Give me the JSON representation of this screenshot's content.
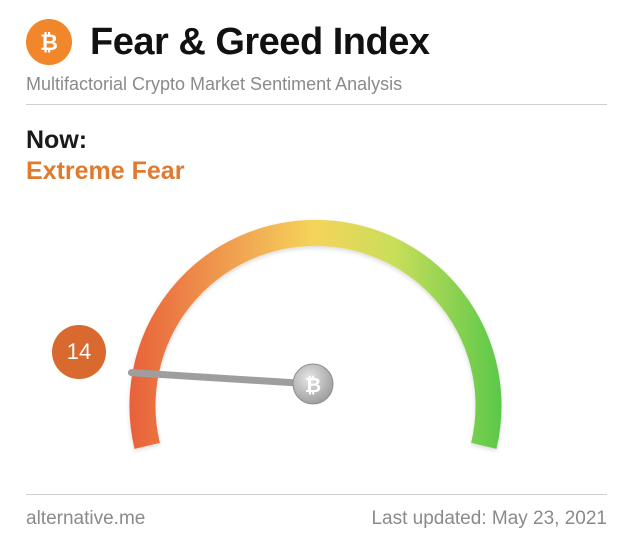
{
  "header": {
    "title": "Fear & Greed Index",
    "subtitle": "Multifactorial Crypto Market Sentiment Analysis",
    "logo_icon": "bitcoin-icon"
  },
  "status": {
    "label": "Now:",
    "classification": "Extreme Fear",
    "classification_color": "#e07a2e"
  },
  "gauge": {
    "value": "14",
    "min": 0,
    "max": 100,
    "badge_color": "#d8692f",
    "hub_icon": "bitcoin-icon",
    "gradient": [
      "#e8603a",
      "#f0a050",
      "#f5d45a",
      "#c8de5a",
      "#5cc84a"
    ]
  },
  "footer": {
    "source": "alternative.me",
    "updated": "Last updated: May 23, 2021"
  }
}
